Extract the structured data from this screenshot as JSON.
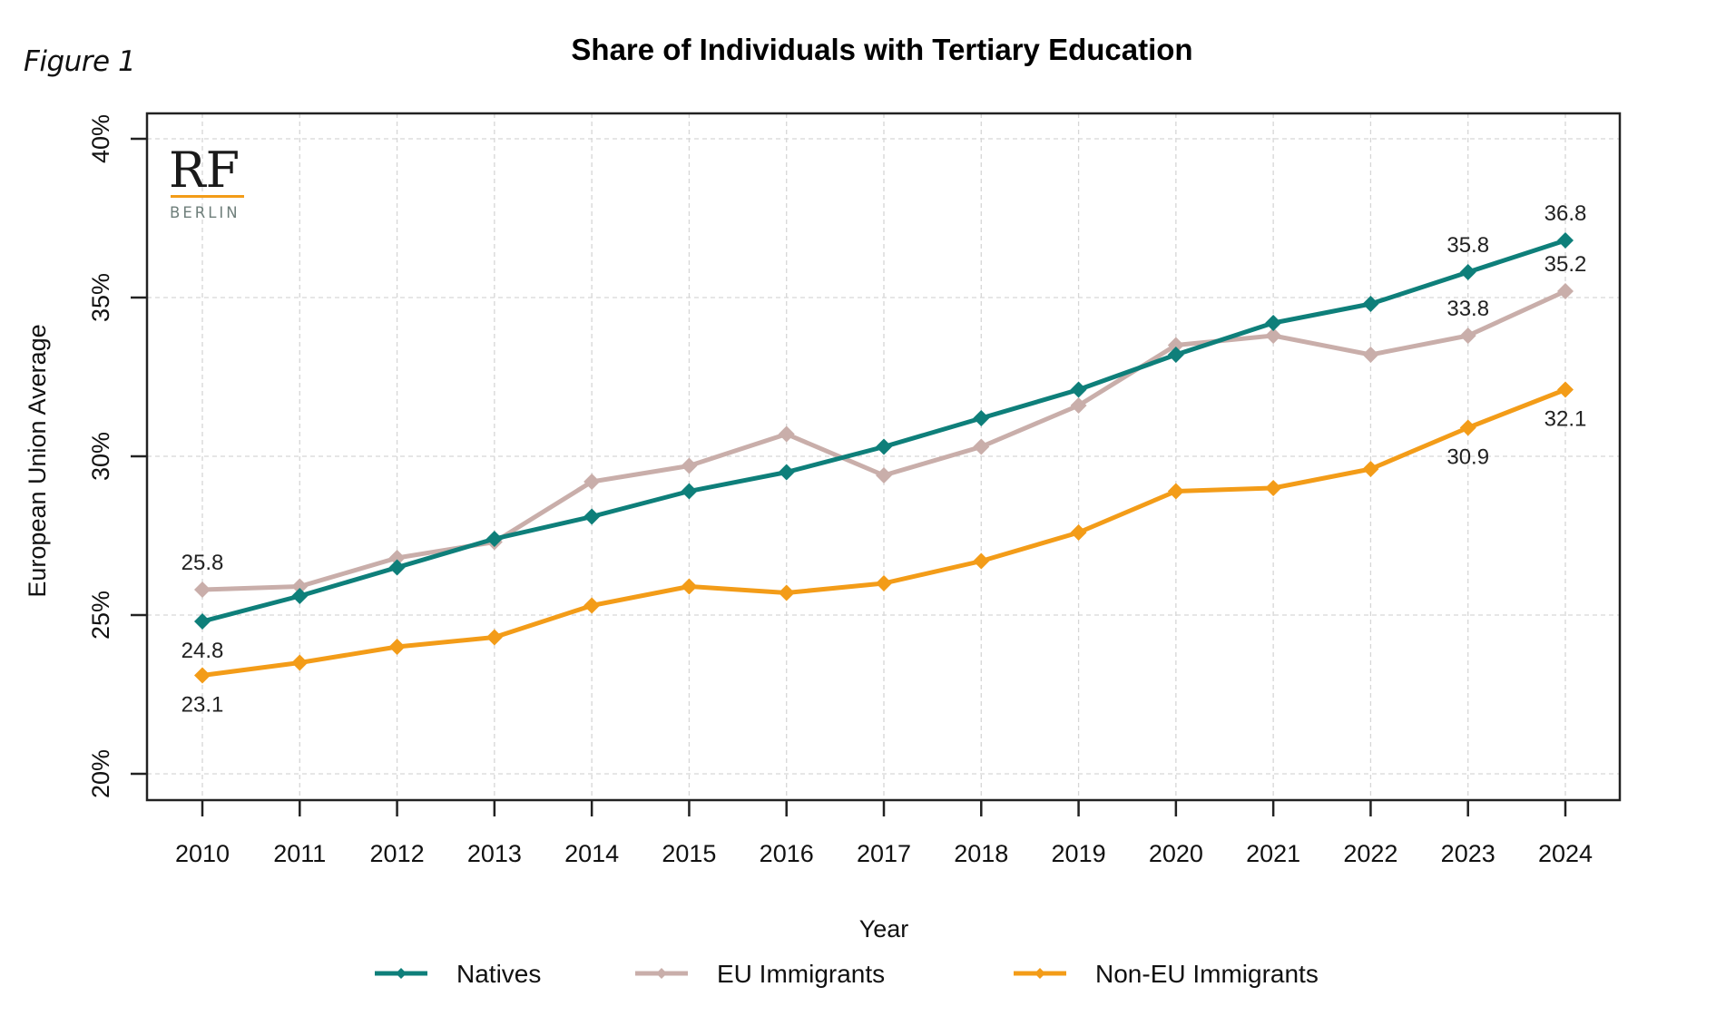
{
  "figure_label": "Figure 1",
  "logo": {
    "main": "RF",
    "sub": "BERLIN",
    "underline_color": "#f39c18"
  },
  "chart_data": {
    "type": "line",
    "title": "Share of Individuals with Tertiary Education",
    "xlabel": "Year",
    "ylabel": "European Union Average",
    "x": [
      2010,
      2011,
      2012,
      2013,
      2014,
      2015,
      2016,
      2017,
      2018,
      2019,
      2020,
      2021,
      2022,
      2023,
      2024
    ],
    "x_tick_labels": [
      "2010",
      "2011",
      "2012",
      "2013",
      "2014",
      "2015",
      "2016",
      "2017",
      "2018",
      "2019",
      "2020",
      "2021",
      "2022",
      "2023",
      "2024"
    ],
    "ylim": [
      20,
      40
    ],
    "y_ticks": [
      20,
      25,
      30,
      35,
      40
    ],
    "y_tick_labels": [
      "20%",
      "25%",
      "30%",
      "35%",
      "40%"
    ],
    "grid": true,
    "legend_position": "bottom",
    "series": [
      {
        "name": "Natives",
        "color": "#0e7f7a",
        "values": [
          24.8,
          25.6,
          26.5,
          27.4,
          28.1,
          28.9,
          29.5,
          30.3,
          31.2,
          32.1,
          33.2,
          34.2,
          34.8,
          35.8,
          36.8
        ],
        "annotations": [
          {
            "x": 2010,
            "text": "24.8",
            "position": "below"
          },
          {
            "x": 2023,
            "text": "35.8",
            "position": "above"
          },
          {
            "x": 2024,
            "text": "36.8",
            "position": "above"
          }
        ]
      },
      {
        "name": "EU Immigrants",
        "color": "#c9aeaa",
        "values": [
          25.8,
          25.9,
          26.8,
          27.3,
          29.2,
          29.7,
          30.7,
          29.4,
          30.3,
          31.6,
          33.5,
          33.8,
          33.2,
          33.8,
          35.2
        ],
        "annotations": [
          {
            "x": 2010,
            "text": "25.8",
            "position": "above"
          },
          {
            "x": 2023,
            "text": "33.8",
            "position": "above"
          },
          {
            "x": 2024,
            "text": "35.2",
            "position": "above"
          }
        ]
      },
      {
        "name": "Non-EU Immigrants",
        "color": "#f39c18",
        "values": [
          23.1,
          23.5,
          24.0,
          24.3,
          25.3,
          25.9,
          25.7,
          26.0,
          26.7,
          27.6,
          28.9,
          29.0,
          29.6,
          30.9,
          32.1
        ],
        "annotations": [
          {
            "x": 2010,
            "text": "23.1",
            "position": "below"
          },
          {
            "x": 2023,
            "text": "30.9",
            "position": "below"
          },
          {
            "x": 2024,
            "text": "32.1",
            "position": "below"
          }
        ]
      }
    ]
  }
}
